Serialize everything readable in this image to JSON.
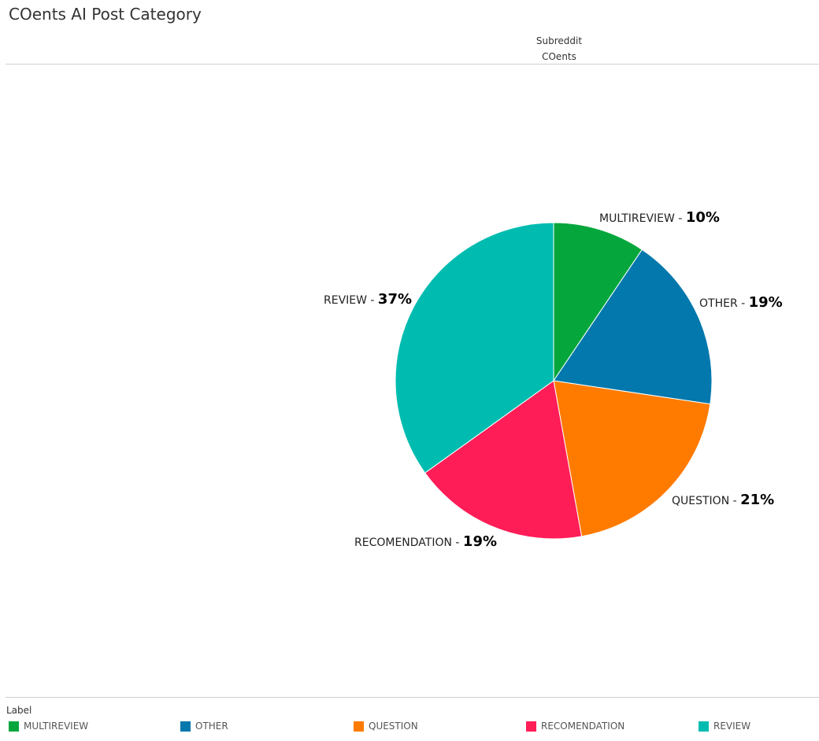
{
  "title": "COents AI Post Category",
  "column_header": {
    "field": "Subreddit",
    "value": "COents"
  },
  "chart_data": {
    "type": "pie",
    "title": "COents AI Post Category",
    "slices": [
      {
        "label": "MULTIREVIEW",
        "value": 10,
        "display": "10%",
        "color": "#05a73d"
      },
      {
        "label": "OTHER",
        "value": 19,
        "display": "19%",
        "color": "#0278ad"
      },
      {
        "label": "QUESTION",
        "value": 21,
        "display": "21%",
        "color": "#ff7b00"
      },
      {
        "label": "RECOMENDATION",
        "value": 19,
        "display": "19%",
        "color": "#ff1d57"
      },
      {
        "label": "REVIEW",
        "value": 37,
        "display": "37%",
        "color": "#00bcb0"
      }
    ],
    "legend_title": "Label",
    "legend_placement": "bottom"
  }
}
